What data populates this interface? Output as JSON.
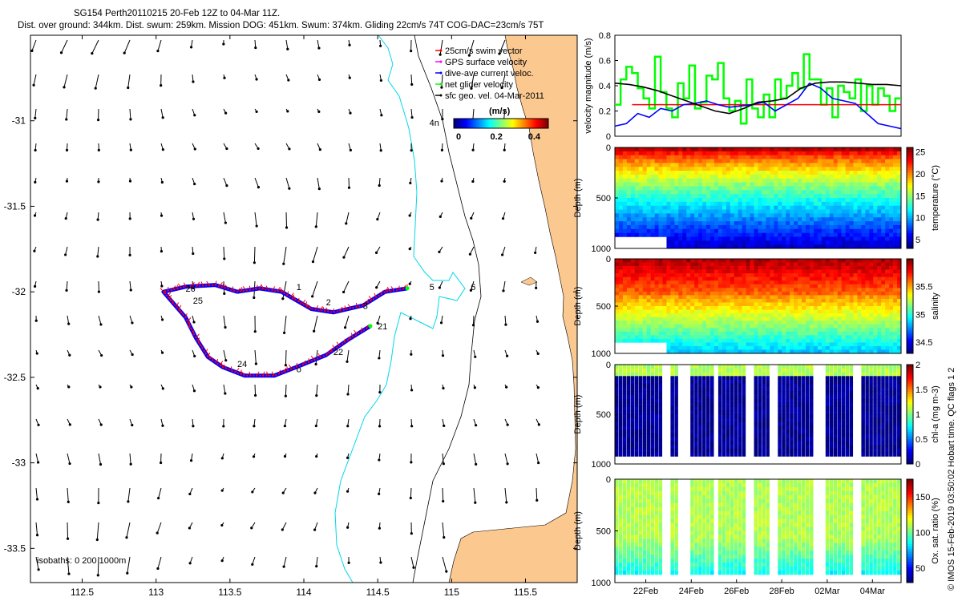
{
  "header": {
    "line1": "SG154 Perth20110215 20-Feb 12Z to 04-Mar 11Z.",
    "line2": "Dist. over ground: 344km. Dist. swum: 259km. Mission DOG: 451km. Swum: 374km. Gliding 22cm/s 74T COG-DAC=23cm/s 75T"
  },
  "copyright": "© IMOS 15-Feb-2019 03:50:02 Hobart time. QC flags 1  2",
  "map": {
    "xticks": [
      "112.5",
      "113",
      "113.5",
      "114",
      "114.5",
      "115",
      "115.5"
    ],
    "xtick_values": [
      112.5,
      113,
      113.5,
      114,
      114.5,
      115,
      115.5
    ],
    "yticks": [
      "-31",
      "-31.5",
      "-32",
      "-32.5",
      "-33",
      "-33.5"
    ],
    "ytick_values": [
      -31,
      -31.5,
      -32,
      -32.5,
      -33,
      -33.5
    ],
    "xlim": [
      112.15,
      115.85
    ],
    "ylim": [
      -33.7,
      -30.5
    ],
    "isobaths_label": "isobaths: 0   200  1000m",
    "legend": [
      {
        "label": "25cm/s swim vector",
        "color": "#ff0000"
      },
      {
        "label": "GPS surface velocity",
        "color": "#ff00ff"
      },
      {
        "label": "dive-ave current veloc.",
        "color": "#0000ff"
      },
      {
        "label": "net glider velocity",
        "color": "#00ff00"
      },
      {
        "label": "sfc geo. vel. 04-Mar-2011",
        "color": "#000000"
      }
    ],
    "colorbar": {
      "title": "(m/s)",
      "ticks": [
        "0",
        "0.2",
        "0.4"
      ],
      "tick_values": [
        0,
        0.2,
        0.4
      ],
      "range": [
        0,
        0.5
      ]
    },
    "track_labels": [
      {
        "text": "26",
        "lon": 113.2,
        "lat": -32.0
      },
      {
        "text": "1",
        "lon": 113.95,
        "lat": -31.99
      },
      {
        "text": "2",
        "lon": 114.15,
        "lat": -32.08
      },
      {
        "text": "3",
        "lon": 114.4,
        "lat": -32.1
      },
      {
        "text": "4n",
        "lon": 114.85,
        "lat": -31.03
      },
      {
        "text": "5",
        "lon": 114.85,
        "lat": -31.99
      },
      {
        "text": "6",
        "lon": 115.13,
        "lat": -31.99
      },
      {
        "text": "25",
        "lon": 113.25,
        "lat": -32.07
      },
      {
        "text": "21",
        "lon": 114.5,
        "lat": -32.22
      },
      {
        "text": "22",
        "lon": 114.2,
        "lat": -32.37
      },
      {
        "text": "24",
        "lon": 113.55,
        "lat": -32.44
      },
      {
        "text": "o",
        "lon": 113.95,
        "lat": -32.47
      }
    ]
  },
  "chart_data": [
    {
      "type": "line",
      "ylabel": "velocity magnitude (m/s)",
      "ylim": [
        0,
        0.8
      ],
      "yticks": [
        "0",
        "0.2",
        "0.4",
        "0.6",
        "0.8"
      ],
      "ytick_values": [
        0,
        0.2,
        0.4,
        0.6,
        0.8
      ],
      "series": [
        {
          "color": "#00ff00",
          "x": [
            0,
            0.02,
            0.04,
            0.06,
            0.08,
            0.1,
            0.12,
            0.14,
            0.16,
            0.18,
            0.2,
            0.22,
            0.24,
            0.26,
            0.28,
            0.3,
            0.32,
            0.34,
            0.36,
            0.38,
            0.4,
            0.42,
            0.44,
            0.46,
            0.48,
            0.5,
            0.52,
            0.54,
            0.56,
            0.58,
            0.6,
            0.62,
            0.64,
            0.66,
            0.68,
            0.7,
            0.72,
            0.74,
            0.76,
            0.78,
            0.8,
            0.82,
            0.84,
            0.86,
            0.88,
            0.9,
            0.92,
            0.94,
            0.96,
            0.98,
            1.0
          ],
          "y": [
            0.25,
            0.45,
            0.55,
            0.5,
            0.38,
            0.3,
            0.22,
            0.63,
            0.35,
            0.22,
            0.15,
            0.42,
            0.3,
            0.56,
            0.22,
            0.27,
            0.48,
            0.45,
            0.58,
            0.3,
            0.2,
            0.28,
            0.1,
            0.45,
            0.22,
            0.15,
            0.33,
            0.15,
            0.45,
            0.3,
            0.4,
            0.5,
            0.38,
            0.65,
            0.45,
            0.45,
            0.25,
            0.38,
            0.15,
            0.4,
            0.35,
            0.3,
            0.45,
            0.2,
            0.4,
            0.25,
            0.38,
            0.32,
            0.2,
            0.3,
            0.3
          ]
        },
        {
          "color": "#ff0000",
          "x": [
            0.06,
            1.0
          ],
          "y": [
            0.25,
            0.25
          ]
        },
        {
          "color": "#0000ff",
          "x": [
            0,
            0.04,
            0.08,
            0.12,
            0.16,
            0.2,
            0.24,
            0.28,
            0.32,
            0.36,
            0.4,
            0.44,
            0.48,
            0.52,
            0.56,
            0.6,
            0.64,
            0.68,
            0.72,
            0.76,
            0.8,
            0.84,
            0.88,
            0.92,
            0.96,
            1.0
          ],
          "y": [
            0.08,
            0.1,
            0.18,
            0.15,
            0.22,
            0.2,
            0.25,
            0.26,
            0.28,
            0.25,
            0.23,
            0.24,
            0.25,
            0.27,
            0.2,
            0.25,
            0.3,
            0.42,
            0.38,
            0.3,
            0.28,
            0.26,
            0.18,
            0.1,
            0.08,
            0.06
          ]
        },
        {
          "color": "#000000",
          "x": [
            0,
            0.05,
            0.1,
            0.15,
            0.2,
            0.25,
            0.3,
            0.35,
            0.4,
            0.45,
            0.5,
            0.55,
            0.6,
            0.65,
            0.7,
            0.75,
            0.8,
            0.85,
            0.9,
            0.95,
            1.0
          ],
          "y": [
            0.42,
            0.41,
            0.39,
            0.36,
            0.32,
            0.28,
            0.24,
            0.2,
            0.18,
            0.22,
            0.27,
            0.28,
            0.3,
            0.38,
            0.42,
            0.43,
            0.43,
            0.42,
            0.41,
            0.41,
            0.4
          ]
        }
      ]
    },
    {
      "type": "heatmap",
      "ylabel": "Depth (m)",
      "colorbar_label": "temperature (°C)",
      "cbar_ticks": [
        "25",
        "20",
        "15",
        "10",
        "5"
      ],
      "cbar_values": [
        25,
        20,
        15,
        10,
        5
      ],
      "cbar_range": [
        3,
        26
      ],
      "yticks": [
        "0",
        "500",
        "1000"
      ],
      "ytick_values": [
        0,
        500,
        1000
      ],
      "dense": true
    },
    {
      "type": "heatmap",
      "ylabel": "Depth (m)",
      "colorbar_label": "salinity",
      "cbar_ticks": [
        "35.5",
        "35",
        "34.5"
      ],
      "cbar_values": [
        35.5,
        35,
        34.5
      ],
      "cbar_range": [
        34.3,
        36.0
      ],
      "yticks": [
        "0",
        "500",
        "1000"
      ],
      "ytick_values": [
        0,
        500,
        1000
      ],
      "dense": true
    },
    {
      "type": "heatmap",
      "ylabel": "Depth (m)",
      "colorbar_label": "chl-a (mg m-3)",
      "cbar_ticks": [
        "2",
        "1.5",
        "1",
        "0.5",
        "0"
      ],
      "cbar_values": [
        2,
        1.5,
        1,
        0.5,
        0
      ],
      "cbar_range": [
        0,
        2
      ],
      "yticks": [
        "0",
        "500",
        "1000"
      ],
      "ytick_values": [
        0,
        500,
        1000
      ],
      "dense": false
    },
    {
      "type": "heatmap",
      "ylabel": "Depth (m)",
      "colorbar_label": "Ox. sat. ratio (%)",
      "cbar_ticks": [
        "150",
        "100",
        "50"
      ],
      "cbar_values": [
        150,
        100,
        50
      ],
      "cbar_range": [
        30,
        175
      ],
      "yticks": [
        "0",
        "500",
        "1000"
      ],
      "ytick_values": [
        0,
        500,
        1000
      ],
      "dense": false,
      "xticks": [
        "22Feb",
        "24Feb",
        "26Feb",
        "28Feb",
        "02Mar",
        "04Mar"
      ],
      "xtick_values": [
        0.108,
        0.267,
        0.425,
        0.583,
        0.742,
        0.9
      ]
    }
  ]
}
